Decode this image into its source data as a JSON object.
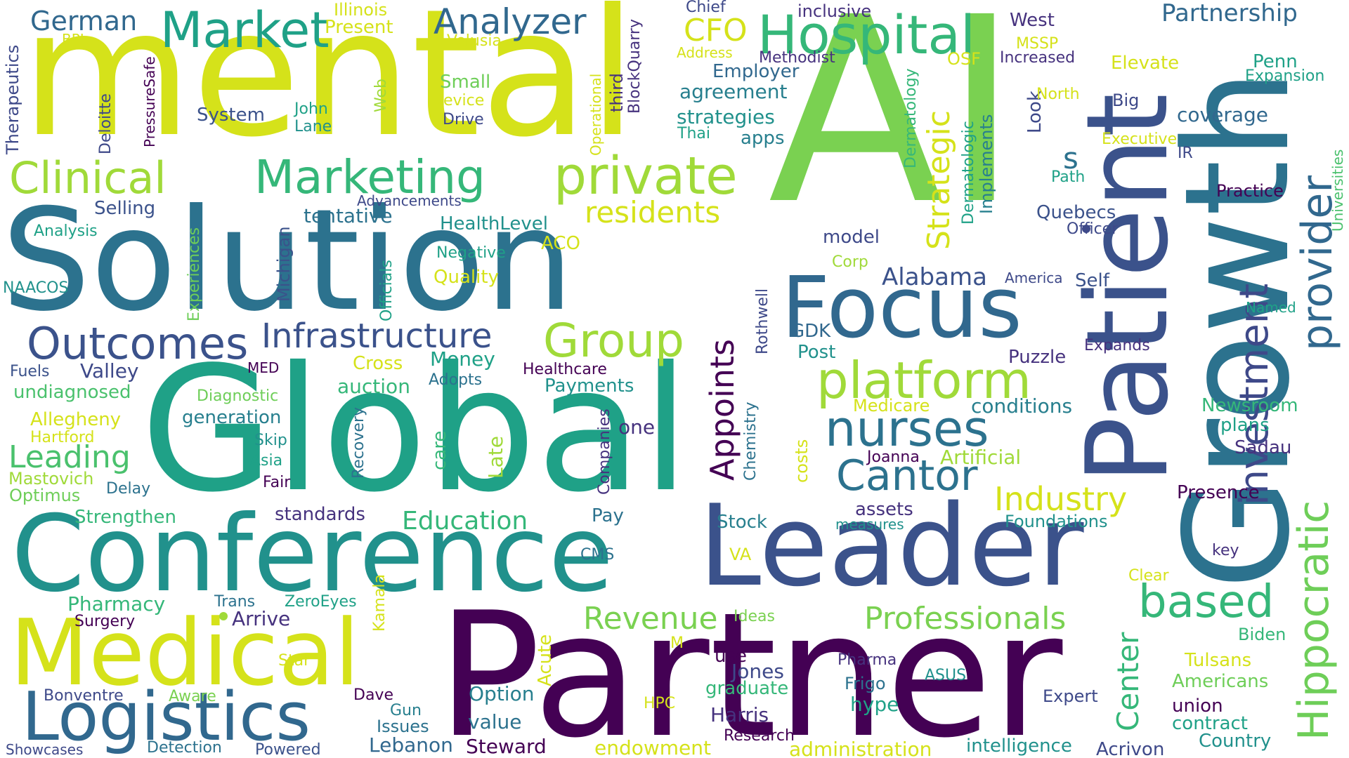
{
  "background": "#ffffff",
  "palette": {
    "c1": "#440154",
    "c2": "#46327e",
    "c3": "#365c8d",
    "c4": "#277f8e",
    "c5": "#1fa187",
    "c6": "#4ac16d",
    "c7": "#a0da39",
    "c8": "#d5e21a"
  },
  "words": {
    "w_ai": "AI",
    "w_mental": "mental",
    "w_partner": "Partner",
    "w_global": "Global",
    "w_solution": "Solution",
    "w_growth": "Growth",
    "w_conference": "Conference",
    "w_leader": "Leader",
    "w_patient": "Patient",
    "w_medical": "Medical",
    "w_focus": "Focus",
    "w_logistics": "Logistics",
    "w_hospital": "Hospital",
    "w_market": "Market",
    "w_analyzer": "Analyzer",
    "w_german": "German",
    "w_clinical": "Clinical",
    "w_marketing": "Marketing",
    "w_private": "private",
    "w_hippocratic": "Hippocratic",
    "w_provider": "provider",
    "w_investment": "investment",
    "w_platform": "platform",
    "w_nurses": "nurses",
    "w_outcomes": "Outcomes",
    "w_infrastructure": "Infrastructure",
    "w_group": "Group",
    "w_cantor": "Cantor",
    "w_based": "based",
    "w_residents": "residents",
    "w_appoints": "Appoints",
    "w_industry": "Industry",
    "w_strategic": "Strategic",
    "w_professionals": "Professionals",
    "w_revenue": "Revenue",
    "w_leading": "Leading",
    "w_education": "Education",
    "w_cfo": "CFO",
    "w_partnership": "Partnership",
    "w_alabama": "Alabama",
    "w_center": "Center",
    "w_tentative": "tentative",
    "w_selling": "Selling",
    "w_healthlevel": "HealthLevel",
    "w_system": "System",
    "w_small": "Small",
    "w_negative": "Negative",
    "w_quality": "Quality",
    "w_model": "model",
    "w_quebecs": "Quebecs",
    "w_coverage": "coverage",
    "w_strategies": "strategies",
    "w_agreement": "agreement",
    "w_employer": "Employer",
    "w_apps": "apps",
    "w_s": "s",
    "w_aco": "ACO",
    "w_analysis": "Analysis",
    "w_naacos": "NAACOS",
    "w_michigan": "Michigan",
    "w_officials": "Officials",
    "w_experiences": "Experiences",
    "w_advancements": "Advancements",
    "w_valley": "Valley",
    "w_fuels": "Fuels",
    "w_med": "MED",
    "w_undiagnosed": "undiagnosed",
    "w_allegheny": "Allegheny",
    "w_hartford": "Hartford",
    "w_mastovich": "Mastovich",
    "w_optimus": "Optimus",
    "w_delay": "Delay",
    "w_strengthen": "Strengthen",
    "w_diagnostic": "Diagnostic",
    "w_generation": "generation",
    "w_skip": "Skip",
    "w_asia": "Asia",
    "w_fair": "Fair",
    "w_standards": "standards",
    "w_cross": "Cross",
    "w_auction": "auction",
    "w_money": "Money",
    "w_adopts": "Adopts",
    "w_healthcare": "Healthcare",
    "w_payments": "Payments",
    "w_recovery": "Recovery",
    "w_care": "care",
    "w_late": "Late",
    "w_companies": "Companies",
    "w_one": "one",
    "w_chemistry": "Chemistry",
    "w_costs": "costs",
    "w_rothwell": "Rothwell",
    "w_gdk": "GDK",
    "w_post": "Post",
    "w_medicare": "Medicare",
    "w_conditions": "conditions",
    "w_puzzle": "Puzzle",
    "w_expands": "Expands",
    "w_newsroom": "Newsroom",
    "w_plans": "plans",
    "w_sadau": "Sadau",
    "w_joanna": "Joanna",
    "w_artificial": "Artificial",
    "w_presence": "Presence",
    "w_assets": "assets",
    "w_measures": "measures",
    "w_foundations": "Foundations",
    "w_stock": "Stock",
    "w_key": "key",
    "w_pay": "Pay",
    "w_cms": "CMS",
    "w_va": "VA",
    "w_clear": "Clear",
    "w_biden": "Biden",
    "w_tulsans": "Tulsans",
    "w_americans": "Americans",
    "w_union": "union",
    "w_contract": "contract",
    "w_country": "Country",
    "w_acrivon": "Acrivon",
    "w_expert": "Expert",
    "w_intelligence": "intelligence",
    "w_administration": "administration",
    "w_research": "Research",
    "w_harris": "Harris",
    "w_jones": "Jones",
    "w_graduate": "graduate",
    "w_use": "use",
    "w_pharma": "Pharma",
    "w_frigo": "Frigo",
    "w_hype": "hype",
    "w_asus": "ASUS",
    "w_hpc": "HPC",
    "w_ideas": "Ideas",
    "w_m": "M",
    "w_acute": "Acute",
    "w_option": "Option",
    "w_value": "value",
    "w_endowment": "endowment",
    "w_steward": "Steward",
    "w_lebanon": "Lebanon",
    "w_issues": "Issues",
    "w_gun": "Gun",
    "w_dave": "Dave",
    "w_kamala": "Kamala",
    "w_star": "Star",
    "w_aware": "Aware",
    "w_bonventre": "Bonventre",
    "w_showcases": "Showcases",
    "w_detection": "Detection",
    "w_powered": "Powered",
    "w_surgery": "Surgery",
    "w_pharmacy": "Pharmacy",
    "w_trans": "Trans",
    "w_zeroeyes": "ZeroEyes",
    "w_arrive": "Arrive",
    "w_therapeutics": "Therapeutics",
    "w_bpl": "BPL",
    "w_deloitte": "Deloitte",
    "w_pressuresafe": "PressureSafe",
    "w_john": "John",
    "w_lane": "Lane",
    "w_web": "Web",
    "w_illinois": "Illinois",
    "w_present": "Present",
    "w_volusia": "Volusia",
    "w_device": "Device",
    "w_drive": "Drive",
    "w_operational": "Operational",
    "w_third": "third",
    "w_blockquarry": "BlockQuarry",
    "w_chief": "Chief",
    "w_address": "Address",
    "w_thai": "Thai",
    "w_inclusive": "inclusive",
    "w_methodist": "Methodist",
    "w_west": "West",
    "w_mssp": "MSSP",
    "w_osf": "OSF",
    "w_increased": "Increased",
    "w_elevate": "Elevate",
    "w_penn": "Penn",
    "w_expansion": "Expansion",
    "w_dermatology": "Dermatology",
    "w_dermatologic": "Dermatologic",
    "w_implements": "Implements",
    "w_look": "Look",
    "w_north": "North",
    "w_big": "Big",
    "w_executive": "Executive",
    "w_ir": "IR",
    "w_path": "Path",
    "w_practice": "Practice",
    "w_universities": "Universities",
    "w_officer": "Officer",
    "w_corp": "Corp",
    "w_america": "America",
    "w_self": "Self",
    "w_named": "Named"
  }
}
